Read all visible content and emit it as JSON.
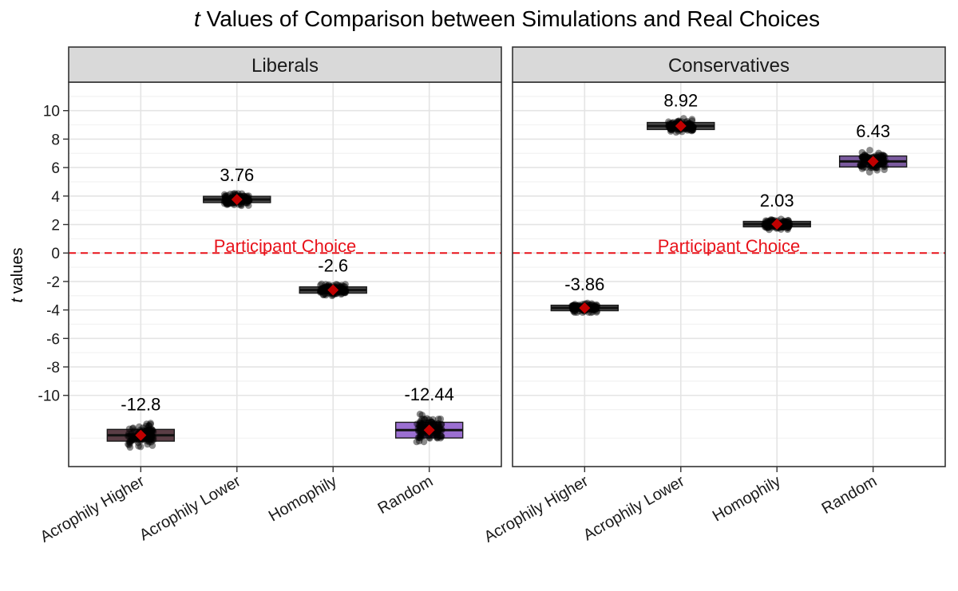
{
  "chart_data": {
    "type": "boxplot",
    "title_italic": "t",
    "title_rest": " Values of Comparison between Simulations and Real Choices",
    "ylabel_italic": "t",
    "ylabel_rest": " values",
    "y_ticks": [
      10,
      8,
      6,
      4,
      2,
      0,
      -2,
      -4,
      -6,
      -8,
      -10
    ],
    "ylim": [
      -15,
      12
    ],
    "categories": [
      "Acrophily Higher",
      "Acrophily Lower",
      "Homophily",
      "Random"
    ],
    "reference_line": {
      "value": 0,
      "label": "Participant Choice",
      "color": "#e8131b"
    },
    "point_color": "#000000",
    "mean_marker_color": "#c00000",
    "panels": [
      {
        "name": "Liberals",
        "series": [
          {
            "category": "Acrophily Higher",
            "mean": -12.8,
            "label": "-12.8",
            "spread": 0.75,
            "fill": "#5a3d45"
          },
          {
            "category": "Acrophily Lower",
            "mean": 3.76,
            "label": "3.76",
            "spread": 0.4,
            "fill": "#4a4a4a"
          },
          {
            "category": "Homophily",
            "mean": -2.6,
            "label": "-2.6",
            "spread": 0.4,
            "fill": "#4a4a4a"
          },
          {
            "category": "Random",
            "mean": -12.44,
            "label": "-12.44",
            "spread": 1.0,
            "fill": "#9b6fd1"
          }
        ]
      },
      {
        "name": "Conservatives",
        "series": [
          {
            "category": "Acrophily Higher",
            "mean": -3.86,
            "label": "-3.86",
            "spread": 0.35,
            "fill": "#4a4a4a"
          },
          {
            "category": "Acrophily Lower",
            "mean": 8.92,
            "label": "8.92",
            "spread": 0.45,
            "fill": "#4a4a4a"
          },
          {
            "category": "Homophily",
            "mean": 2.03,
            "label": "2.03",
            "spread": 0.35,
            "fill": "#4a4a4a"
          },
          {
            "category": "Random",
            "mean": 6.43,
            "label": "6.43",
            "spread": 0.7,
            "fill": "#7a5a9e"
          }
        ]
      }
    ]
  }
}
